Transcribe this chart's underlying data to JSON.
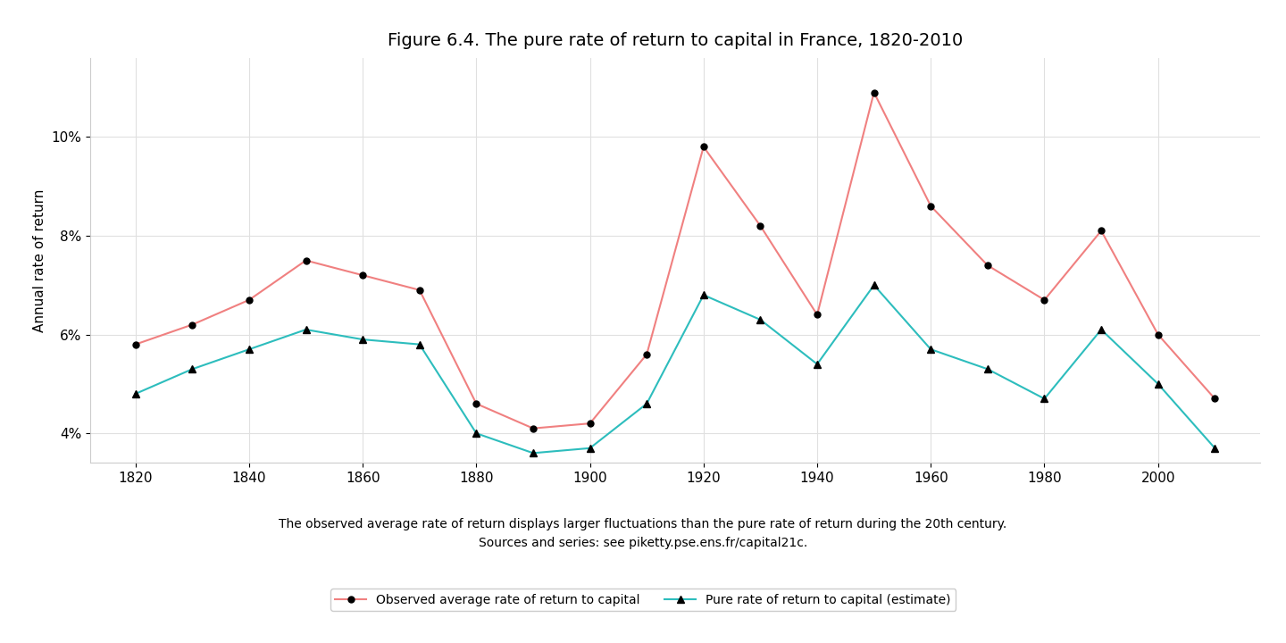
{
  "title": "Figure 6.4. The pure rate of return to capital in France, 1820-2010",
  "caption_line1": "The observed average rate of return displays larger fluctuations than the pure rate of return during the 20th century.",
  "caption_line2": "Sources and series: see piketty.pse.ens.fr/capital21c.",
  "ylabel": "Annual rate of return",
  "observed_years": [
    1820,
    1830,
    1840,
    1850,
    1860,
    1870,
    1880,
    1890,
    1900,
    1910,
    1920,
    1930,
    1940,
    1950,
    1960,
    1970,
    1980,
    1990,
    2000,
    2010
  ],
  "observed_values": [
    0.058,
    0.062,
    0.067,
    0.075,
    0.072,
    0.069,
    0.046,
    0.041,
    0.042,
    0.056,
    0.098,
    0.082,
    0.064,
    0.109,
    0.086,
    0.074,
    0.067,
    0.081,
    0.06,
    0.047
  ],
  "pure_years": [
    1820,
    1830,
    1840,
    1850,
    1860,
    1870,
    1880,
    1890,
    1900,
    1910,
    1920,
    1930,
    1940,
    1950,
    1960,
    1970,
    1980,
    1990,
    2000,
    2010
  ],
  "pure_values": [
    0.048,
    0.053,
    0.057,
    0.061,
    0.059,
    0.058,
    0.04,
    0.036,
    0.037,
    0.046,
    0.068,
    0.063,
    0.054,
    0.07,
    0.057,
    0.053,
    0.047,
    0.061,
    0.05,
    0.037
  ],
  "observed_color": "#f08080",
  "pure_color": "#2dbdbd",
  "observed_label": "Observed average rate of return to capital",
  "pure_label": "Pure rate of return to capital (estimate)",
  "ylim": [
    0.034,
    0.116
  ],
  "yticks": [
    0.04,
    0.06,
    0.08,
    0.1
  ],
  "ytick_labels": [
    "4%",
    "6%",
    "8%",
    "10%"
  ],
  "xticks": [
    1820,
    1840,
    1860,
    1880,
    1900,
    1920,
    1940,
    1960,
    1980,
    2000
  ],
  "xlim": [
    1812,
    2018
  ],
  "background_color": "#ffffff",
  "grid_color": "#e0e0e0",
  "title_fontsize": 14,
  "label_fontsize": 11,
  "tick_fontsize": 11,
  "caption_fontsize": 10,
  "legend_fontsize": 10
}
